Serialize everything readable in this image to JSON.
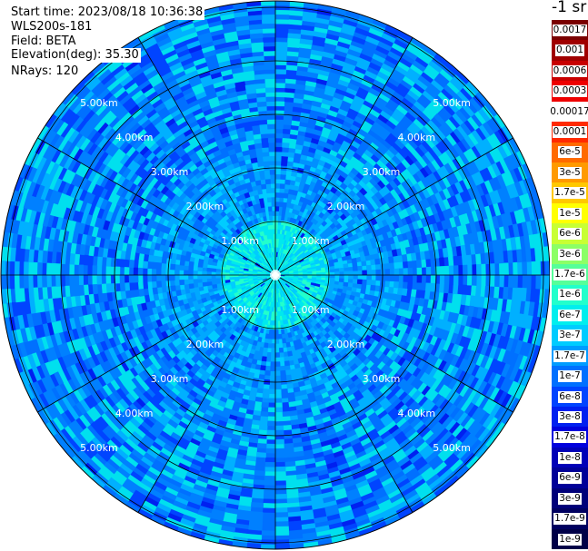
{
  "info": {
    "start_time": "Start time: 2023/08/18 10:36:38",
    "instrument": "WLS200s-181",
    "field": "Field: BETA",
    "elevation": "Elevation(deg): 35.30",
    "nrays": "NRays: 120"
  },
  "colorbar": {
    "title": "-1 sr",
    "entries": [
      {
        "label": "0.0017",
        "color": "#7a0000"
      },
      {
        "label": "0.001",
        "color": "#a00000"
      },
      {
        "label": "0.0006",
        "color": "#c80000"
      },
      {
        "label": "0.0003",
        "color": "#ee0000"
      },
      {
        "label": "0.00017",
        "color": "#ffffff"
      },
      {
        "label": "0.0001",
        "color": "#ff2a00"
      },
      {
        "label": "6e-5",
        "color": "#ff6a00"
      },
      {
        "label": "3e-5",
        "color": "#ff9a00"
      },
      {
        "label": "1.7e-5",
        "color": "#ffc800"
      },
      {
        "label": "1e-5",
        "color": "#ffff00"
      },
      {
        "label": "6e-6",
        "color": "#c8ff33"
      },
      {
        "label": "3e-6",
        "color": "#8cff66"
      },
      {
        "label": "1.7e-6",
        "color": "#55ff99"
      },
      {
        "label": "1e-6",
        "color": "#22ffcc"
      },
      {
        "label": "6e-7",
        "color": "#00eeee"
      },
      {
        "label": "3e-7",
        "color": "#00ccff"
      },
      {
        "label": "1.7e-7",
        "color": "#009cff"
      },
      {
        "label": "1e-7",
        "color": "#0070ff"
      },
      {
        "label": "6e-8",
        "color": "#0044ff"
      },
      {
        "label": "3e-8",
        "color": "#0020f0"
      },
      {
        "label": "1.7e-8",
        "color": "#0000dd"
      },
      {
        "label": "1e-8",
        "color": "#0000b8"
      },
      {
        "label": "6e-9",
        "color": "#000098"
      },
      {
        "label": "3e-9",
        "color": "#00007a"
      },
      {
        "label": "1.7e-9",
        "color": "#000060"
      },
      {
        "label": "1e-9",
        "color": "#000048"
      }
    ]
  },
  "plot": {
    "range_rings_km": [
      1,
      2,
      3,
      4,
      5
    ],
    "ring_labels": [
      "1.00km",
      "2.00km",
      "3.00km",
      "4.00km",
      "5.00km"
    ],
    "palette": {
      "near_center": [
        "#00e8ee",
        "#22ffcc",
        "#00ccff"
      ],
      "mid": [
        "#00a8ff",
        "#0090ff",
        "#0070ff",
        "#00ccff"
      ],
      "far": [
        "#0080ff",
        "#0070ff",
        "#0044ff",
        "#00b0ff",
        "#00e0ee"
      ],
      "background_fill": "#0080ff"
    }
  }
}
